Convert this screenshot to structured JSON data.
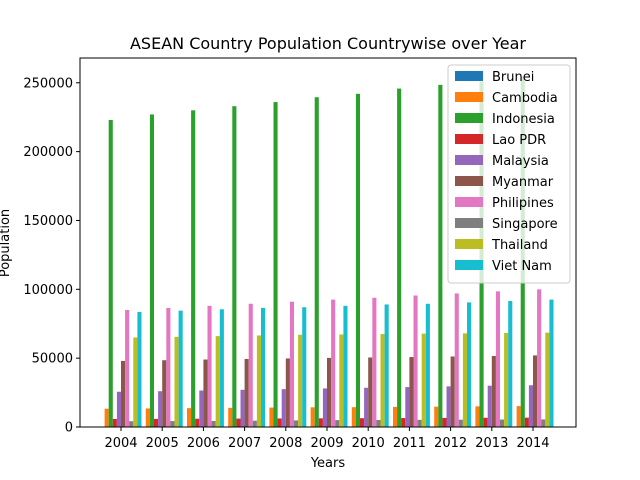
{
  "chart_data": {
    "type": "bar",
    "title": "ASEAN Country Population Countrywise over Year",
    "xlabel": "Years",
    "ylabel": "Population",
    "ylim": [
      0,
      268000
    ],
    "yticks": [
      0,
      50000,
      100000,
      150000,
      200000,
      250000
    ],
    "categories": [
      "2004",
      "2005",
      "2006",
      "2007",
      "2008",
      "2009",
      "2010",
      "2011",
      "2012",
      "2013",
      "2014"
    ],
    "legend_position": "top-right",
    "grid": false,
    "series": [
      {
        "name": "Brunei",
        "color": "#1f77b4",
        "values": [
          360,
          365,
          370,
          376,
          381,
          387,
          393,
          399,
          405,
          411,
          417
        ]
      },
      {
        "name": "Cambodia",
        "color": "#ff7f0e",
        "values": [
          13300,
          13500,
          13700,
          13900,
          14100,
          14300,
          14400,
          14600,
          14800,
          15000,
          15200
        ]
      },
      {
        "name": "Indonesia",
        "color": "#2ca02c",
        "values": [
          223000,
          227000,
          230000,
          233000,
          236000,
          239500,
          242000,
          245800,
          248500,
          251000,
          254500
        ]
      },
      {
        "name": "Lao PDR",
        "color": "#d62728",
        "values": [
          5800,
          5900,
          6000,
          6100,
          6200,
          6300,
          6400,
          6500,
          6600,
          6700,
          6800
        ]
      },
      {
        "name": "Malaysia",
        "color": "#9467bd",
        "values": [
          25600,
          26000,
          26500,
          27000,
          27500,
          28000,
          28500,
          29000,
          29500,
          30000,
          30300
        ]
      },
      {
        "name": "Myanmar",
        "color": "#8c564b",
        "values": [
          48000,
          48500,
          49000,
          49400,
          49800,
          50200,
          50500,
          50800,
          51200,
          51600,
          52000
        ]
      },
      {
        "name": "Philipines",
        "color": "#e377c2",
        "values": [
          85000,
          86500,
          88000,
          89500,
          91000,
          92500,
          93900,
          95500,
          97000,
          98500,
          100000
        ]
      },
      {
        "name": "Singapore",
        "color": "#7f7f7f",
        "values": [
          4200,
          4300,
          4400,
          4600,
          4800,
          5000,
          5100,
          5200,
          5300,
          5400,
          5500
        ]
      },
      {
        "name": "Thailand",
        "color": "#bcbd22",
        "values": [
          65000,
          65500,
          66000,
          66500,
          67000,
          67200,
          67500,
          67800,
          68000,
          68300,
          68500
        ]
      },
      {
        "name": "Viet Nam",
        "color": "#17becf",
        "values": [
          83500,
          84500,
          85500,
          86500,
          87000,
          88000,
          89000,
          89500,
          90500,
          91500,
          92500
        ]
      }
    ]
  }
}
